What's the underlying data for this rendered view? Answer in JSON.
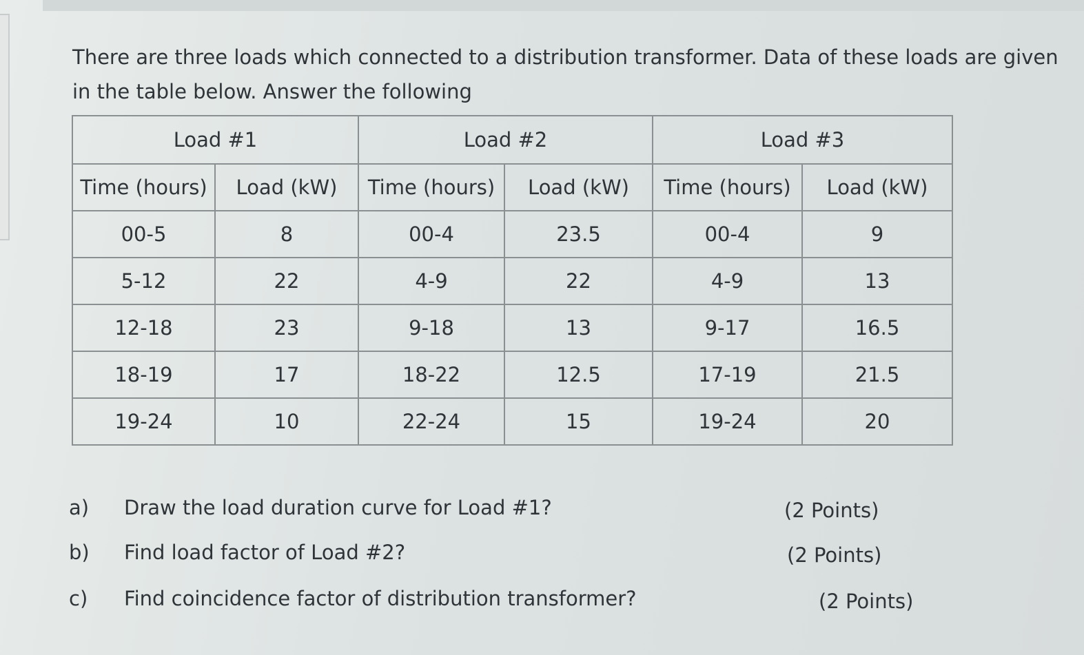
{
  "intro": "There are three loads which connected to a distribution transformer. Data of these loads are given in the table below. Answer the following",
  "table": {
    "groups": [
      "Load #1",
      "Load #2",
      "Load #3"
    ],
    "columns": [
      "Time (hours)",
      "Load (kW)",
      "Time (hours)",
      "Load (kW)",
      "Time (hours)",
      "Load (kW)"
    ],
    "rows": [
      [
        "00-5",
        8,
        "00-4",
        23.5,
        "00-4",
        9
      ],
      [
        "5-12",
        22,
        "4-9",
        22,
        "4-9",
        13
      ],
      [
        "12-18",
        23,
        "9-18",
        13,
        "9-17",
        16.5
      ],
      [
        "18-19",
        17,
        "18-22",
        12.5,
        "17-19",
        21.5
      ],
      [
        "19-24",
        10,
        "22-24",
        15,
        "19-24",
        20
      ]
    ]
  },
  "questions": [
    {
      "label": "a)",
      "text": "Draw the load duration curve for Load #1?",
      "points": "(2 Points)"
    },
    {
      "label": "b)",
      "text": "Find load factor of Load #2?",
      "points": "(2 Points)"
    },
    {
      "label": "c)",
      "text": "Find coincidence factor of distribution transformer?",
      "points": "(2 Points)"
    }
  ]
}
